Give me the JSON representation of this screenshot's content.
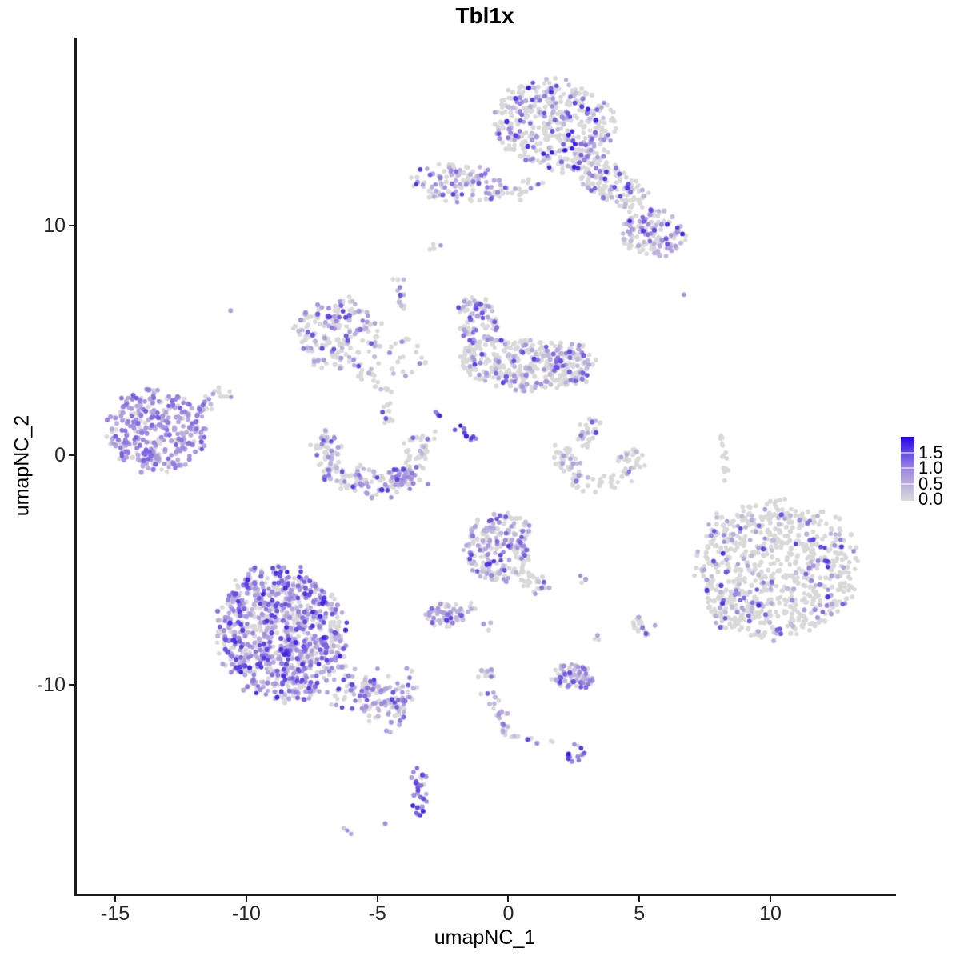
{
  "title": "Tbl1x",
  "chart_data": {
    "type": "scatter",
    "title": "Tbl1x",
    "xlabel": "umapNC_1",
    "ylabel": "umapNC_2",
    "xlim": [
      -16.5,
      14.7
    ],
    "ylim": [
      -19.1,
      18.2
    ],
    "x_ticks": [
      -15,
      -10,
      -5,
      0,
      5,
      10
    ],
    "x_tick_labels": [
      "-15",
      "-10",
      "-5",
      "0",
      "5",
      "10"
    ],
    "y_ticks": [
      -10,
      0,
      10
    ],
    "y_tick_labels": [
      "-10",
      "0",
      "10"
    ],
    "grid": "off",
    "legend_position": "right-middle",
    "colorbar": {
      "tick_labels": [
        "1.5",
        "1.0",
        "0.5",
        "0.0"
      ],
      "tick_values": [
        1.5,
        1.0,
        0.5,
        0.0
      ],
      "vmin": 0.0,
      "vmax": 2.0,
      "low_color": "#d9d9d9",
      "mid_color": "#9e89e0",
      "high_color": "#2606e8"
    },
    "point_radius_px": 2.9,
    "clusters": [
      {
        "name": "top-main",
        "type": "blob",
        "cx": 1.8,
        "cy": 14.4,
        "rx": 2.35,
        "ry": 1.95,
        "rot": -15,
        "n": 430,
        "pos": 0.32,
        "vmax": 1.9
      },
      {
        "name": "top-arm",
        "type": "blob",
        "cx": 3.9,
        "cy": 11.9,
        "rx": 1.7,
        "ry": 0.75,
        "rot": -35,
        "n": 150,
        "pos": 0.25,
        "vmax": 1.7
      },
      {
        "name": "top-right-pocket",
        "type": "blob",
        "cx": 5.5,
        "cy": 9.7,
        "rx": 1.25,
        "ry": 1.05,
        "rot": -20,
        "n": 150,
        "pos": 0.5,
        "vmax": 1.8
      },
      {
        "name": "top-left-cluster",
        "type": "blob",
        "cx": -1.9,
        "cy": 11.85,
        "rx": 1.85,
        "ry": 0.9,
        "rot": -8,
        "n": 120,
        "pos": 0.5,
        "vmax": 1.7
      },
      {
        "name": "top-bridge",
        "type": "strand",
        "x1": -0.2,
        "y1": 11.55,
        "x2": 1.8,
        "y2": 11.65,
        "w": 0.22,
        "n": 18,
        "pos": 0.12
      },
      {
        "name": "tiny-upper-mid",
        "type": "blob",
        "cx": -2.8,
        "cy": 9.05,
        "rx": 0.33,
        "ry": 0.28,
        "n": 5,
        "pos": 0.35
      },
      {
        "name": "outlier-dots-upper",
        "type": "points",
        "pts": [
          [
            6.7,
            7.0,
            0.85
          ],
          [
            -10.6,
            6.3,
            0.75
          ]
        ]
      },
      {
        "name": "mid-left-cluster",
        "type": "blob",
        "cx": -6.45,
        "cy": 5.3,
        "rx": 1.75,
        "ry": 1.55,
        "rot": 20,
        "n": 185,
        "pos": 0.38,
        "vmax": 1.6
      },
      {
        "name": "mid-diag-strand",
        "type": "strand",
        "x1": -4.3,
        "y1": 7.9,
        "x2": -4.05,
        "y2": 6.35,
        "w": 0.12,
        "n": 13,
        "pos": 0.6,
        "vmax": 1.5
      },
      {
        "name": "mid-squiggle-a",
        "type": "strand",
        "x1": -6.1,
        "y1": 4.05,
        "x2": -4.6,
        "y2": 2.95,
        "w": 0.16,
        "n": 17,
        "pos": 0.3
      },
      {
        "name": "mid-squiggle-b",
        "type": "strand",
        "x1": -4.6,
        "y1": 2.95,
        "x2": -4.65,
        "y2": 1.35,
        "w": 0.14,
        "n": 15,
        "pos": 0.35
      },
      {
        "name": "mid-sparse",
        "type": "blob",
        "cx": -4.1,
        "cy": 4.3,
        "rx": 1.0,
        "ry": 0.95,
        "n": 22,
        "pos": 0.18
      },
      {
        "name": "bowl-left-arm",
        "type": "arc",
        "cx": -5.15,
        "cy": 0.2,
        "rx": 1.8,
        "ry": 1.5,
        "a0": 150,
        "a1": 215,
        "th": 0.5,
        "n": 55,
        "pos": 0.22
      },
      {
        "name": "bowl-bottom",
        "type": "arc",
        "cx": -5.15,
        "cy": 0.2,
        "rx": 1.8,
        "ry": 1.5,
        "a0": 215,
        "a1": 325,
        "th": 0.55,
        "n": 135,
        "pos": 0.58,
        "vmax": 1.7
      },
      {
        "name": "bowl-right-arm",
        "type": "arc",
        "cx": -5.15,
        "cy": 0.2,
        "rx": 1.8,
        "ry": 1.5,
        "a0": 325,
        "a1": 385,
        "th": 0.5,
        "n": 45,
        "pos": 0.22
      },
      {
        "name": "center-left-lobe",
        "type": "blob",
        "cx": -1.15,
        "cy": 5.85,
        "rx": 0.75,
        "ry": 1.25,
        "rot": 10,
        "n": 95,
        "pos": 0.5,
        "vmax": 1.6
      },
      {
        "name": "center-body",
        "type": "blob",
        "cx": 0.6,
        "cy": 3.95,
        "rx": 2.45,
        "ry": 1.15,
        "rot": -7,
        "n": 310,
        "pos": 0.2,
        "vmax": 1.6
      },
      {
        "name": "center-right-lobe",
        "type": "blob",
        "cx": 2.35,
        "cy": 4.0,
        "rx": 0.95,
        "ry": 0.95,
        "n": 85,
        "pos": 0.42,
        "vmax": 1.6
      },
      {
        "name": "blue-strand",
        "type": "strand",
        "x1": -2.85,
        "y1": 1.95,
        "x2": -1.2,
        "y2": 0.6,
        "w": 0.11,
        "n": 13,
        "pos": 0.92,
        "vmin": 0.9,
        "vmax": 1.9,
        "vexp": 1
      },
      {
        "name": "small-c-arm",
        "type": "strand",
        "x1": 3.25,
        "y1": 1.6,
        "x2": 2.9,
        "y2": 0.35,
        "w": 0.18,
        "n": 28,
        "pos": 0.35
      },
      {
        "name": "small-c-bowl",
        "type": "arc",
        "cx": 3.4,
        "cy": -0.15,
        "rx": 1.35,
        "ry": 1.05,
        "a0": 150,
        "a1": 385,
        "th": 0.5,
        "n": 95,
        "pos": 0.17
      },
      {
        "name": "grey-line",
        "type": "strand",
        "x1": 8.12,
        "y1": 1.05,
        "x2": 8.33,
        "y2": -0.8,
        "w": 0.05,
        "n": 15,
        "pos": 0
      },
      {
        "name": "grey-line-dot",
        "type": "points",
        "pts": [
          [
            8.25,
            -1.1,
            0
          ]
        ]
      },
      {
        "name": "right-big",
        "type": "blob",
        "cx": 10.25,
        "cy": -4.95,
        "rx": 3.05,
        "ry": 2.95,
        "rot": 25,
        "n": 730,
        "pos": 0.17,
        "vmax": 1.7,
        "vexp": 1.6
      },
      {
        "name": "right-fringe-a",
        "type": "blob",
        "cx": 8.55,
        "cy": -6.7,
        "rx": 0.95,
        "ry": 0.85,
        "n": 55,
        "pos": 0.25
      },
      {
        "name": "right-fringe-b",
        "type": "blob",
        "cx": 8.15,
        "cy": -3.3,
        "rx": 0.5,
        "ry": 0.85,
        "n": 22,
        "pos": 0.3
      },
      {
        "name": "mid-bottom-cluster",
        "type": "blob",
        "cx": -0.35,
        "cy": -4.0,
        "rx": 1.3,
        "ry": 1.55,
        "rot": -10,
        "n": 215,
        "pos": 0.45,
        "vmax": 1.7
      },
      {
        "name": "mid-bottom-arm",
        "type": "strand",
        "x1": 0.55,
        "y1": -5.2,
        "x2": 1.45,
        "y2": -5.95,
        "w": 0.2,
        "n": 24,
        "pos": 0.4
      },
      {
        "name": "mid-bottom-pair",
        "type": "points",
        "pts": [
          [
            2.75,
            -5.25,
            0.95
          ],
          [
            2.95,
            -5.4,
            0.7
          ],
          [
            2.8,
            -5.55,
            0
          ]
        ]
      },
      {
        "name": "small-purple-cluster",
        "type": "blob",
        "cx": -2.4,
        "cy": -7.0,
        "rx": 0.8,
        "ry": 0.55,
        "rot": 15,
        "n": 60,
        "pos": 0.6,
        "vmax": 1.6
      },
      {
        "name": "mini-strand",
        "type": "strand",
        "x1": -1.6,
        "y1": -6.35,
        "x2": -1.25,
        "y2": -6.8,
        "w": 0.1,
        "n": 6,
        "pos": 0.5
      },
      {
        "name": "mid-low-dots",
        "type": "points",
        "pts": [
          [
            -0.95,
            -7.35,
            0.8
          ],
          [
            -0.75,
            -7.62,
            0
          ],
          [
            -0.68,
            -7.3,
            0.4
          ]
        ]
      },
      {
        "name": "bottom-left-main",
        "type": "blob",
        "cx": -8.65,
        "cy": -7.8,
        "rx": 2.45,
        "ry": 2.95,
        "rot": 12,
        "n": 950,
        "pos": 0.62,
        "vmin": 0.45,
        "vmax": 1.8,
        "vexp": 1.7
      },
      {
        "name": "bottom-left-arm",
        "type": "strand",
        "x1": -6.35,
        "y1": -9.9,
        "x2": -3.85,
        "y2": -11.1,
        "w": 0.5,
        "n": 150,
        "pos": 0.6,
        "vmax": 1.7
      },
      {
        "name": "net-knot",
        "type": "blob",
        "cx": -0.85,
        "cy": -9.5,
        "rx": 0.38,
        "ry": 0.3,
        "n": 12,
        "pos": 0.5
      },
      {
        "name": "net-strand-down",
        "type": "strand",
        "x1": -0.8,
        "y1": -10.15,
        "x2": -0.05,
        "y2": -12.25,
        "w": 0.13,
        "n": 26,
        "pos": 0.45
      },
      {
        "name": "net-strand-right",
        "type": "strand",
        "x1": 0.1,
        "y1": -12.35,
        "x2": 1.75,
        "y2": -12.5,
        "w": 0.1,
        "n": 11,
        "pos": 0.3
      },
      {
        "name": "net-oval",
        "type": "blob",
        "cx": 2.5,
        "cy": -9.65,
        "rx": 0.85,
        "ry": 0.52,
        "rot": -8,
        "n": 75,
        "pos": 0.6,
        "vmax": 1.6
      },
      {
        "name": "net-deep-knot",
        "type": "blob",
        "cx": 2.55,
        "cy": -12.95,
        "rx": 0.38,
        "ry": 0.42,
        "n": 13,
        "pos": 0.85,
        "vmin": 0.9,
        "vmax": 1.9,
        "vexp": 1
      },
      {
        "name": "pair-right-low",
        "type": "points",
        "pts": [
          [
            3.4,
            -7.85,
            0.6
          ],
          [
            3.45,
            -8.05,
            0
          ],
          [
            3.3,
            -8.0,
            0
          ]
        ]
      },
      {
        "name": "small-right-low",
        "type": "blob",
        "cx": 5.2,
        "cy": -7.4,
        "rx": 0.45,
        "ry": 0.55,
        "rot": 30,
        "n": 20,
        "pos": 0.45
      },
      {
        "name": "j-strand-upper",
        "type": "strand",
        "x1": -3.62,
        "y1": -13.55,
        "x2": -3.22,
        "y2": -14.85,
        "w": 0.17,
        "n": 16,
        "pos": 0.85,
        "vmin": 0.5,
        "vmax": 1.6,
        "vexp": 1
      },
      {
        "name": "j-strand-hook",
        "type": "strand",
        "x1": -3.22,
        "y1": -14.85,
        "x2": -3.55,
        "y2": -15.65,
        "w": 0.15,
        "n": 14,
        "pos": 0.9,
        "vmin": 0.7,
        "vmax": 1.9,
        "vexp": 1
      },
      {
        "name": "bottom-dot",
        "type": "points",
        "pts": [
          [
            -4.7,
            -16.05,
            0.9
          ]
        ]
      },
      {
        "name": "bottom-pair",
        "type": "points",
        "pts": [
          [
            -6.15,
            -16.35,
            1.0
          ],
          [
            -6.0,
            -16.5,
            0.55
          ],
          [
            -6.28,
            -16.25,
            0.2
          ]
        ]
      },
      {
        "name": "left-main",
        "type": "blob",
        "cx": -13.4,
        "cy": 1.05,
        "rx": 1.95,
        "ry": 1.8,
        "rot": -12,
        "n": 345,
        "pos": 0.72,
        "vmin": 0.5,
        "vmax": 1.35,
        "vexp": 1.2
      },
      {
        "name": "left-tail",
        "type": "strand",
        "x1": -11.85,
        "y1": 2.0,
        "x2": -10.65,
        "y2": 2.9,
        "w": 0.18,
        "n": 20,
        "pos": 0.5,
        "vmax": 1.3
      }
    ]
  }
}
